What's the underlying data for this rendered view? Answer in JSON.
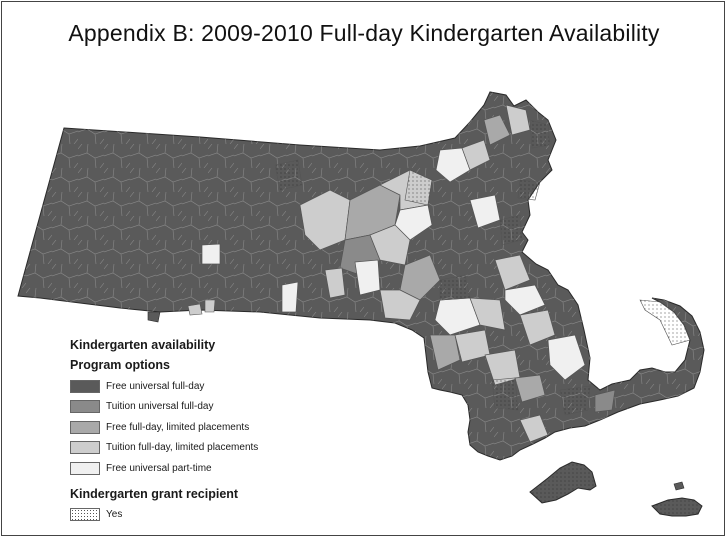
{
  "title": "Appendix B: 2009-2010 Full-day Kindergarten Availability",
  "legend": {
    "heading": "Kindergarten availability",
    "program_heading": "Program options",
    "program_options": [
      {
        "label": "Free universal full-day",
        "color": "#5a5a5a"
      },
      {
        "label": "Tuition universal full-day",
        "color": "#8a8a8a"
      },
      {
        "label": "Free full-day, limited placements",
        "color": "#a9a9a9"
      },
      {
        "label": "Tuition full-day, limited placements",
        "color": "#cdcdcd"
      },
      {
        "label": "Free universal part-time",
        "color": "#f0f0f0"
      }
    ],
    "grant_heading": "Kindergarten grant recipient",
    "grant_label": "Yes"
  },
  "map": {
    "region": "Massachusetts",
    "base_color": "#5a5a5a",
    "border_color": "#d8d8d8"
  }
}
